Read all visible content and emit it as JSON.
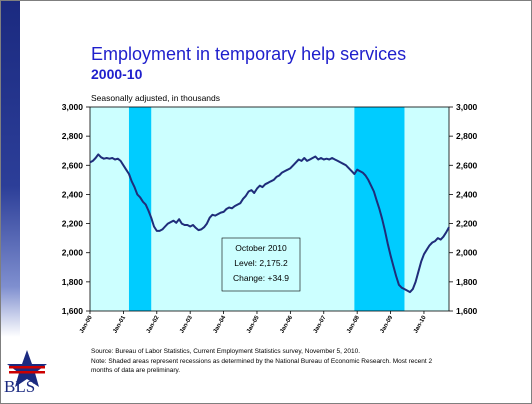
{
  "chart_data": {
    "type": "line",
    "title": "Employment in temporary help services",
    "subtitle": "2000-10",
    "ylabel": "Seasonally adjusted, in thousands",
    "xlabel": "",
    "ylim": [
      1600,
      3000
    ],
    "y_ticks": [
      "3,000",
      "2,800",
      "2,600",
      "2,400",
      "2,200",
      "2,000",
      "1,800",
      "1,600"
    ],
    "y_tick_values": [
      3000,
      2800,
      2600,
      2400,
      2200,
      2000,
      1800,
      1600
    ],
    "x_ticks": [
      "Jan-00",
      "Jan-01",
      "Jan-02",
      "Jan-03",
      "Jan-04",
      "Jan-05",
      "Jan-06",
      "Jan-07",
      "Jan-08",
      "Jan-09",
      "Jan-10"
    ],
    "x_range": [
      "2000-01",
      "2010-10"
    ],
    "grid": false,
    "secondary_y_axis": true,
    "colors": {
      "plot_background": "#ccffff",
      "recession": "#00ccff",
      "line": "#1f2d7a"
    },
    "recessions": [
      {
        "start": "2001-03",
        "end": "2001-11"
      },
      {
        "start": "2007-12",
        "end": "2009-06"
      }
    ],
    "series": [
      {
        "x": [
          "2000-01",
          "2000-02",
          "2000-03",
          "2000-04",
          "2000-05",
          "2000-06",
          "2000-07",
          "2000-08",
          "2000-09",
          "2000-10",
          "2000-11",
          "2000-12",
          "2001-01",
          "2001-02",
          "2001-03",
          "2001-04",
          "2001-05",
          "2001-06",
          "2001-07",
          "2001-08",
          "2001-09",
          "2001-10",
          "2001-11",
          "2001-12",
          "2002-01",
          "2002-02",
          "2002-03",
          "2002-04",
          "2002-05",
          "2002-06",
          "2002-07",
          "2002-08",
          "2002-09",
          "2002-10",
          "2002-11",
          "2002-12",
          "2003-01",
          "2003-02",
          "2003-03",
          "2003-04",
          "2003-05",
          "2003-06",
          "2003-07",
          "2003-08",
          "2003-09",
          "2003-10",
          "2003-11",
          "2003-12",
          "2004-01",
          "2004-02",
          "2004-03",
          "2004-04",
          "2004-05",
          "2004-06",
          "2004-07",
          "2004-08",
          "2004-09",
          "2004-10",
          "2004-11",
          "2004-12",
          "2005-01",
          "2005-02",
          "2005-03",
          "2005-04",
          "2005-05",
          "2005-06",
          "2005-07",
          "2005-08",
          "2005-09",
          "2005-10",
          "2005-11",
          "2005-12",
          "2006-01",
          "2006-02",
          "2006-03",
          "2006-04",
          "2006-05",
          "2006-06",
          "2006-07",
          "2006-08",
          "2006-09",
          "2006-10",
          "2006-11",
          "2006-12",
          "2007-01",
          "2007-02",
          "2007-03",
          "2007-04",
          "2007-05",
          "2007-06",
          "2007-07",
          "2007-08",
          "2007-09",
          "2007-10",
          "2007-11",
          "2007-12",
          "2008-01",
          "2008-02",
          "2008-03",
          "2008-04",
          "2008-05",
          "2008-06",
          "2008-07",
          "2008-08",
          "2008-09",
          "2008-10",
          "2008-11",
          "2008-12",
          "2009-01",
          "2009-02",
          "2009-03",
          "2009-04",
          "2009-05",
          "2009-06",
          "2009-07",
          "2009-08",
          "2009-09",
          "2009-10",
          "2009-11",
          "2009-12",
          "2010-01",
          "2010-02",
          "2010-03",
          "2010-04",
          "2010-05",
          "2010-06",
          "2010-07",
          "2010-08",
          "2010-09",
          "2010-10"
        ],
        "y": [
          2620,
          2630,
          2650,
          2675,
          2655,
          2645,
          2650,
          2645,
          2650,
          2640,
          2645,
          2630,
          2600,
          2570,
          2540,
          2490,
          2450,
          2400,
          2380,
          2350,
          2330,
          2290,
          2240,
          2180,
          2150,
          2150,
          2160,
          2180,
          2200,
          2210,
          2220,
          2205,
          2230,
          2200,
          2190,
          2190,
          2180,
          2190,
          2170,
          2155,
          2160,
          2175,
          2200,
          2240,
          2260,
          2255,
          2265,
          2275,
          2280,
          2300,
          2310,
          2305,
          2320,
          2330,
          2340,
          2370,
          2390,
          2420,
          2430,
          2410,
          2440,
          2460,
          2450,
          2470,
          2480,
          2490,
          2500,
          2520,
          2530,
          2550,
          2560,
          2570,
          2580,
          2600,
          2620,
          2640,
          2630,
          2650,
          2630,
          2640,
          2650,
          2660,
          2640,
          2650,
          2640,
          2645,
          2640,
          2650,
          2640,
          2630,
          2620,
          2610,
          2600,
          2580,
          2560,
          2540,
          2570,
          2560,
          2550,
          2530,
          2500,
          2460,
          2420,
          2360,
          2300,
          2230,
          2150,
          2060,
          1980,
          1910,
          1840,
          1780,
          1760,
          1750,
          1740,
          1730,
          1750,
          1800,
          1870,
          1940,
          1990,
          2020,
          2050,
          2070,
          2080,
          2100,
          2090,
          2110,
          2140,
          2175
        ]
      }
    ],
    "annotation": {
      "lines": [
        "October 2010",
        "Level: 2,175.2",
        "Change: +34.9"
      ]
    },
    "notes": [
      "Source:  Bureau of Labor Statistics, Current Employment Statistics survey, November 5, 2010.",
      "Note: Shaded areas represent recessions as determined by the National Bureau of Economic Research.  Most recent 2",
      "months of data are preliminary."
    ]
  },
  "logo": {
    "text": "BLS"
  }
}
